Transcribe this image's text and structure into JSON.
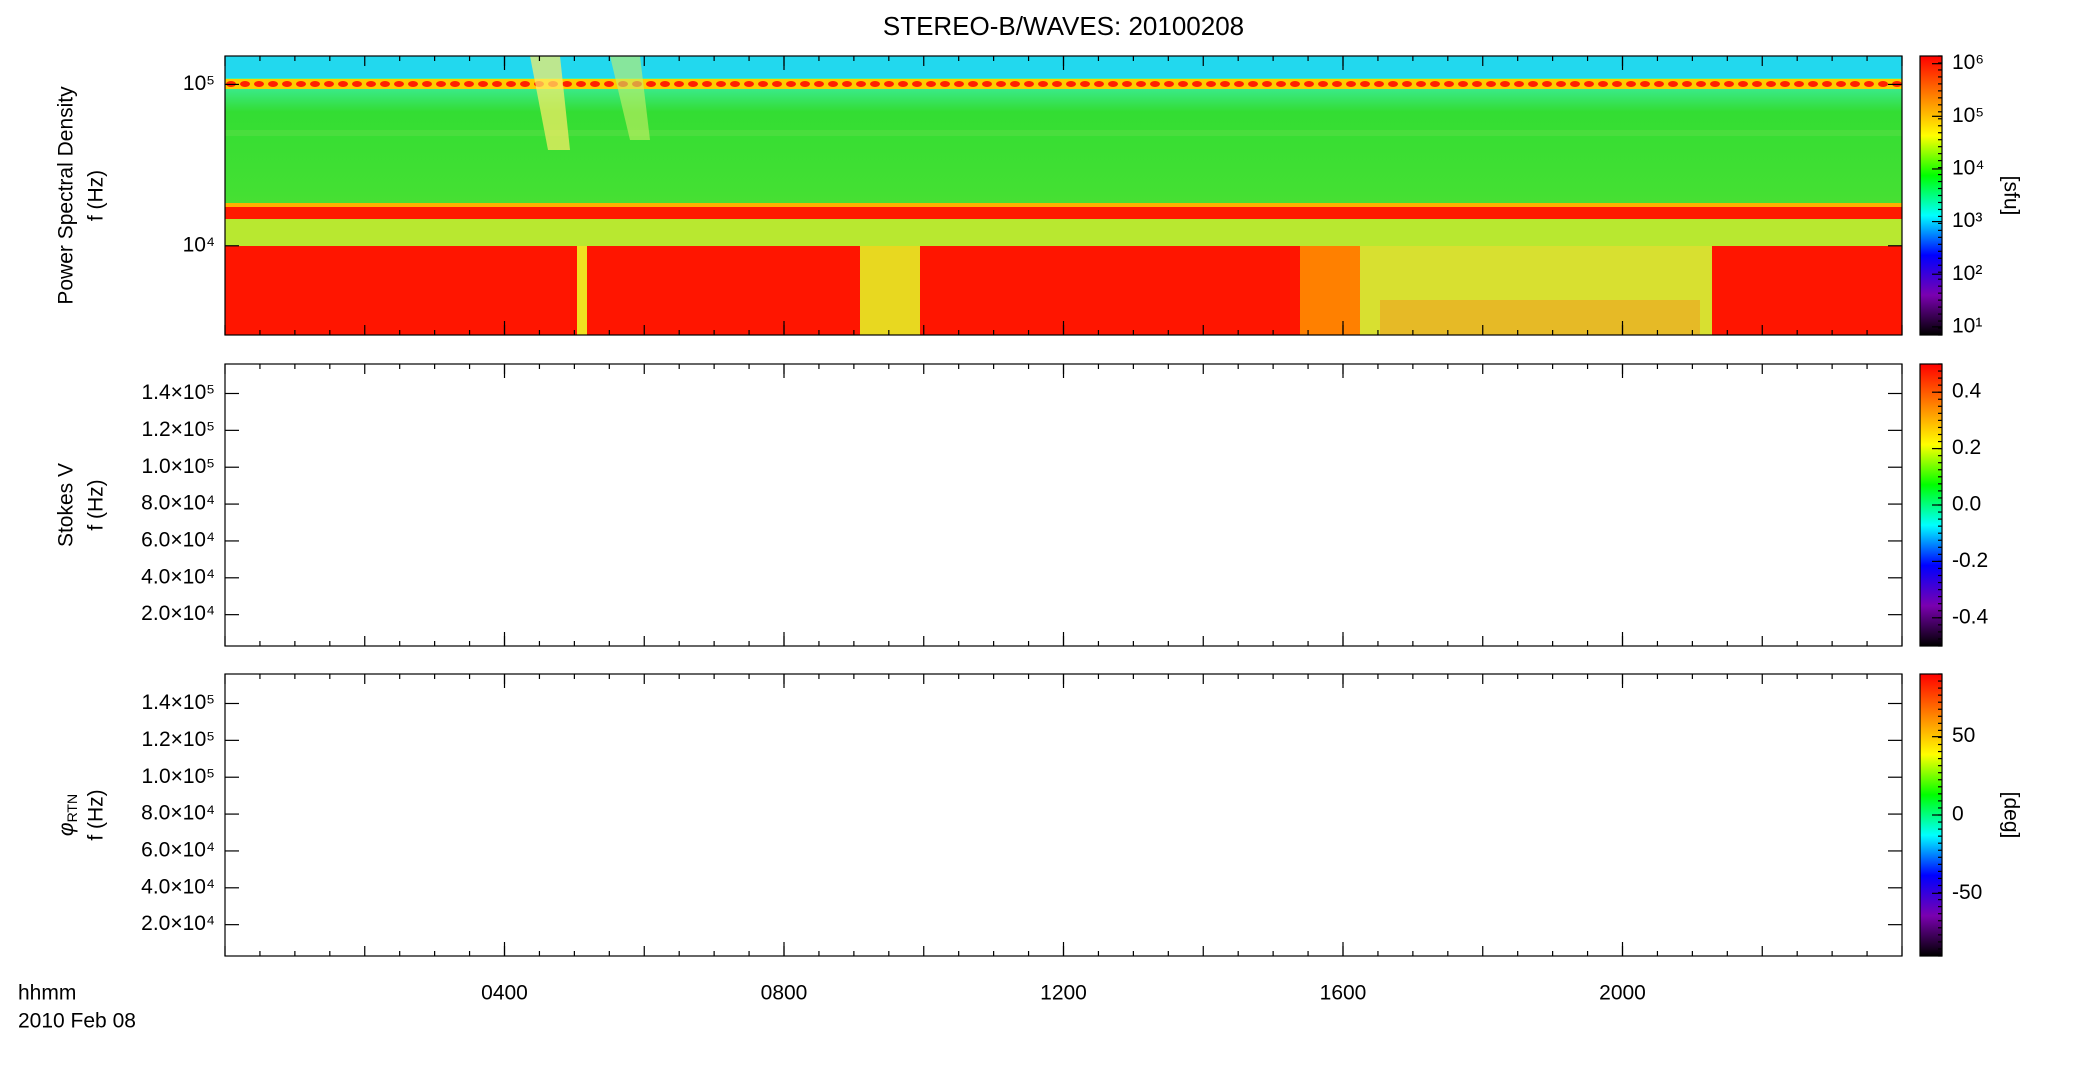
{
  "chart_data": [
    {
      "type": "heatmap",
      "title": "STEREO-B/WAVES: 20100208",
      "ylabel": [
        "Power Spectral Density",
        "f (Hz)"
      ],
      "ylog": true,
      "ylim": [
        2800,
        150000
      ],
      "yticks": [
        {
          "value": 100000,
          "label": "10⁵"
        },
        {
          "value": 10000,
          "label": "10⁴"
        }
      ],
      "xlim": [
        0,
        24
      ],
      "zlabel": "[sfu]",
      "zlog": true,
      "zlim": [
        7,
        1400000
      ],
      "zticks": [
        {
          "value": 1000000,
          "label": "10⁶"
        },
        {
          "value": 100000,
          "label": "10⁵"
        },
        {
          "value": 10000,
          "label": "10⁴"
        },
        {
          "value": 1000,
          "label": "10³"
        },
        {
          "value": 100,
          "label": "10²"
        },
        {
          "value": 10,
          "label": "10¹"
        }
      ],
      "colormap": [
        "#000000",
        "#7a00b0",
        "#0000ff",
        "#00ffff",
        "#00ff00",
        "#ffff00",
        "#ff8000",
        "#ff0000"
      ]
    },
    {
      "type": "heatmap",
      "ylabel": [
        "Stokes V",
        "f (Hz)"
      ],
      "ylog": false,
      "ylim": [
        3000,
        156000
      ],
      "yticks": [
        {
          "value": 140000,
          "label": "1.4×10⁵"
        },
        {
          "value": 120000,
          "label": "1.2×10⁵"
        },
        {
          "value": 100000,
          "label": "1.0×10⁵"
        },
        {
          "value": 80000,
          "label": "8.0×10⁴"
        },
        {
          "value": 60000,
          "label": "6.0×10⁴"
        },
        {
          "value": 40000,
          "label": "4.0×10⁴"
        },
        {
          "value": 20000,
          "label": "2.0×10⁴"
        }
      ],
      "xlim": [
        0,
        24
      ],
      "zlog": false,
      "zlim": [
        -0.5,
        0.5
      ],
      "zticks": [
        0.4,
        0.2,
        {
          "value": 0,
          "label": "0.0"
        },
        -0.2,
        -0.4
      ],
      "colormap": [
        "#000000",
        "#7a00b0",
        "#0000ff",
        "#00ffff",
        "#00ff00",
        "#ffff00",
        "#ff8000",
        "#ff0000"
      ]
    },
    {
      "type": "heatmap",
      "ylabel": [
        [
          "φ",
          "RTN"
        ],
        "f (Hz)"
      ],
      "ylog": false,
      "ylim": [
        3000,
        156000
      ],
      "yticks": [
        {
          "value": 140000,
          "label": "1.4×10⁵"
        },
        {
          "value": 120000,
          "label": "1.2×10⁵"
        },
        {
          "value": 100000,
          "label": "1.0×10⁵"
        },
        {
          "value": 80000,
          "label": "8.0×10⁴"
        },
        {
          "value": 60000,
          "label": "6.0×10⁴"
        },
        {
          "value": 40000,
          "label": "4.0×10⁴"
        },
        {
          "value": 20000,
          "label": "2.0×10⁴"
        }
      ],
      "xlim": [
        0,
        24
      ],
      "xticks": [
        {
          "value": 4,
          "label": "0400"
        },
        {
          "value": 8,
          "label": "0800"
        },
        {
          "value": 12,
          "label": "1200"
        },
        {
          "value": 16,
          "label": "1600"
        },
        {
          "value": 20,
          "label": "2000"
        }
      ],
      "xlabel": [
        "hhmm",
        "2010 Feb 08"
      ],
      "zlabel": "[deg]",
      "zlog": false,
      "zlim": [
        -90,
        90
      ],
      "zticks": [
        50,
        0,
        -50
      ],
      "colormap": [
        "#000000",
        "#7a00b0",
        "#0000ff",
        "#00ffff",
        "#00ff00",
        "#ffff00",
        "#ff8000",
        "#ff0000"
      ]
    }
  ]
}
